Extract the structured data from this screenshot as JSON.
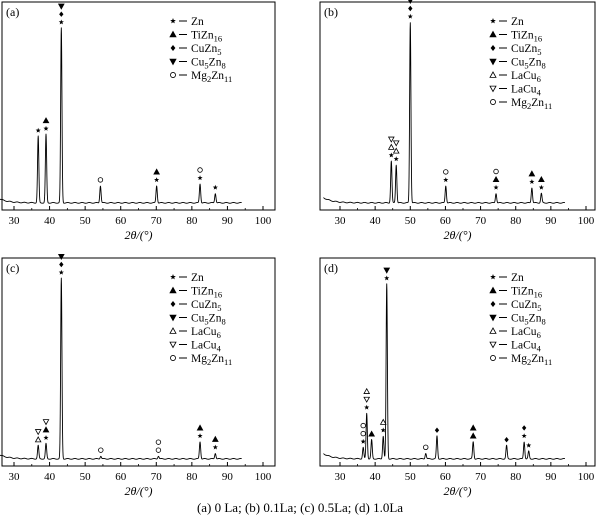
{
  "caption": "(a) 0 La; (b) 0.1La; (c) 0.5La; (d) 1.0La",
  "legend_symbols": {
    "Zn": "star",
    "TiZn16": "triangle-filled",
    "CuZn5": "diamond",
    "Cu5Zn8": "triangle-down-filled",
    "LaCu6": "triangle-open",
    "LaCu4": "triangle-down-open",
    "Mg2Zn11": "circle-open"
  },
  "chart_data": [
    {
      "type": "line",
      "panel_label": "(a)",
      "xlabel": "2θ/(°)",
      "xlim": [
        25,
        100
      ],
      "xticks": [
        30,
        40,
        50,
        60,
        70,
        80,
        90,
        100
      ],
      "ylim": [
        0,
        100
      ],
      "legend": [
        {
          "key": "Zn",
          "base": "Zn",
          "sub": ""
        },
        {
          "key": "TiZn16",
          "base": "TiZn",
          "sub": "16"
        },
        {
          "key": "CuZn5",
          "base": "CuZn",
          "sub": "5"
        },
        {
          "key": "Cu5Zn8",
          "base": "Cu",
          "sub": "5",
          "base2": "Zn",
          "sub2": "8"
        },
        {
          "key": "Mg2Zn11",
          "base": "Mg",
          "sub": "2",
          "base2": "Zn",
          "sub2": "11"
        }
      ],
      "peaks": [
        {
          "x": 36.8,
          "y": 35,
          "markers": [
            "Zn"
          ]
        },
        {
          "x": 39.0,
          "y": 36,
          "markers": [
            "TiZn16",
            "Zn"
          ]
        },
        {
          "x": 43.3,
          "y": 92,
          "markers": [
            "Cu5Zn8",
            "CuZn5",
            "Zn"
          ]
        },
        {
          "x": 54.3,
          "y": 9,
          "markers": [
            "Mg2Zn11"
          ]
        },
        {
          "x": 70.1,
          "y": 9,
          "markers": [
            "TiZn16",
            "Zn"
          ]
        },
        {
          "x": 82.3,
          "y": 10,
          "markers": [
            "Mg2Zn11",
            "Zn"
          ]
        },
        {
          "x": 86.6,
          "y": 5,
          "markers": [
            "Zn"
          ]
        }
      ]
    },
    {
      "type": "line",
      "panel_label": "(b)",
      "xlabel": "2θ/(°)",
      "xlim": [
        25,
        100
      ],
      "xticks": [
        30,
        40,
        50,
        60,
        70,
        80,
        90,
        100
      ],
      "ylim": [
        0,
        100
      ],
      "legend": [
        {
          "key": "Zn",
          "base": "Zn",
          "sub": ""
        },
        {
          "key": "TiZn16",
          "base": "TiZn",
          "sub": "16"
        },
        {
          "key": "CuZn5",
          "base": "CuZn",
          "sub": "5"
        },
        {
          "key": "Cu5Zn8",
          "base": "Cu",
          "sub": "5",
          "base2": "Zn",
          "sub2": "8"
        },
        {
          "key": "LaCu6",
          "base": "LaCu",
          "sub": "6"
        },
        {
          "key": "LaCu4",
          "base": "LaCu",
          "sub": "4"
        },
        {
          "key": "Mg2Zn11",
          "base": "Mg",
          "sub": "2",
          "base2": "Zn",
          "sub2": "11"
        }
      ],
      "peaks": [
        {
          "x": 44.6,
          "y": 22,
          "markers": [
            "LaCu4",
            "LaCu6",
            "Zn"
          ]
        },
        {
          "x": 46.0,
          "y": 20,
          "markers": [
            "LaCu4",
            "LaCu6",
            "Zn"
          ]
        },
        {
          "x": 50.0,
          "y": 95,
          "markers": [
            "Cu5Zn8",
            "CuZn5",
            "Zn"
          ]
        },
        {
          "x": 60.1,
          "y": 9,
          "markers": [
            "Mg2Zn11",
            "Zn"
          ]
        },
        {
          "x": 74.4,
          "y": 5,
          "markers": [
            "Mg2Zn11",
            "TiZn16",
            "Zn"
          ]
        },
        {
          "x": 84.6,
          "y": 8,
          "markers": [
            "TiZn16",
            "Zn"
          ]
        },
        {
          "x": 87.3,
          "y": 5,
          "markers": [
            "TiZn16",
            "Zn"
          ]
        }
      ]
    },
    {
      "type": "line",
      "panel_label": "(c)",
      "xlabel": "2θ/(°)",
      "xlim": [
        25,
        100
      ],
      "xticks": [
        30,
        40,
        50,
        60,
        70,
        80,
        90,
        100
      ],
      "ylim": [
        0,
        100
      ],
      "legend": [
        {
          "key": "Zn",
          "base": "Zn",
          "sub": ""
        },
        {
          "key": "TiZn16",
          "base": "TiZn",
          "sub": "16"
        },
        {
          "key": "CuZn5",
          "base": "CuZn",
          "sub": "5"
        },
        {
          "key": "Cu5Zn8",
          "base": "Cu",
          "sub": "5",
          "base2": "Zn",
          "sub2": "8"
        },
        {
          "key": "LaCu6",
          "base": "LaCu",
          "sub": "6"
        },
        {
          "key": "LaCu4",
          "base": "LaCu",
          "sub": "4"
        },
        {
          "key": "Mg2Zn11",
          "base": "Mg",
          "sub": "2",
          "base2": "Zn",
          "sub2": "11"
        }
      ],
      "peaks": [
        {
          "x": 36.8,
          "y": 7,
          "markers": [
            "LaCu4",
            "LaCu6"
          ]
        },
        {
          "x": 39.0,
          "y": 8,
          "markers": [
            "LaCu4",
            "TiZn16",
            "Zn"
          ]
        },
        {
          "x": 43.3,
          "y": 95,
          "markers": [
            "Cu5Zn8",
            "CuZn5",
            "Zn"
          ]
        },
        {
          "x": 54.4,
          "y": 1.5,
          "markers": [
            "Mg2Zn11"
          ]
        },
        {
          "x": 70.6,
          "y": 1.5,
          "markers": [
            "Mg2Zn11",
            "Mg2Zn11"
          ]
        },
        {
          "x": 82.3,
          "y": 9,
          "markers": [
            "TiZn16",
            "Zn"
          ]
        },
        {
          "x": 86.6,
          "y": 3,
          "markers": [
            "TiZn16",
            "Zn"
          ]
        }
      ]
    },
    {
      "type": "line",
      "panel_label": "(d)",
      "xlabel": "2θ/(°)",
      "xlim": [
        25,
        100
      ],
      "xticks": [
        30,
        40,
        50,
        60,
        70,
        80,
        90,
        100
      ],
      "ylim": [
        0,
        100
      ],
      "legend": [
        {
          "key": "Zn",
          "base": "Zn",
          "sub": ""
        },
        {
          "key": "TiZn16",
          "base": "TiZn",
          "sub": "16"
        },
        {
          "key": "CuZn5",
          "base": "CuZn",
          "sub": "5"
        },
        {
          "key": "Cu5Zn8",
          "base": "Cu",
          "sub": "5",
          "base2": "Zn",
          "sub2": "8"
        },
        {
          "key": "LaCu6",
          "base": "LaCu",
          "sub": "6"
        },
        {
          "key": "LaCu4",
          "base": "LaCu",
          "sub": "4"
        },
        {
          "key": "Mg2Zn11",
          "base": "Mg",
          "sub": "2",
          "base2": "Zn",
          "sub2": "11"
        }
      ],
      "peaks": [
        {
          "x": 36.6,
          "y": 6,
          "markers": [
            "Mg2Zn11",
            "Mg2Zn11",
            "Zn"
          ]
        },
        {
          "x": 37.6,
          "y": 24,
          "markers": [
            "LaCu6",
            "LaCu4",
            "Zn"
          ]
        },
        {
          "x": 39.0,
          "y": 10,
          "markers": [
            "TiZn16"
          ]
        },
        {
          "x": 42.3,
          "y": 12,
          "markers": [
            "LaCu6",
            "Zn"
          ]
        },
        {
          "x": 43.3,
          "y": 92,
          "markers": [
            "Cu5Zn8",
            "Zn"
          ]
        },
        {
          "x": 54.4,
          "y": 3,
          "markers": [
            "Mg2Zn11"
          ]
        },
        {
          "x": 57.6,
          "y": 12,
          "markers": [
            "CuZn5"
          ]
        },
        {
          "x": 67.9,
          "y": 9,
          "markers": [
            "TiZn16",
            "TiZn16"
          ]
        },
        {
          "x": 77.4,
          "y": 7,
          "markers": [
            "CuZn5"
          ]
        },
        {
          "x": 82.4,
          "y": 9,
          "markers": [
            "CuZn5",
            "Zn"
          ]
        },
        {
          "x": 83.7,
          "y": 4,
          "markers": [
            "Zn"
          ]
        }
      ]
    }
  ]
}
